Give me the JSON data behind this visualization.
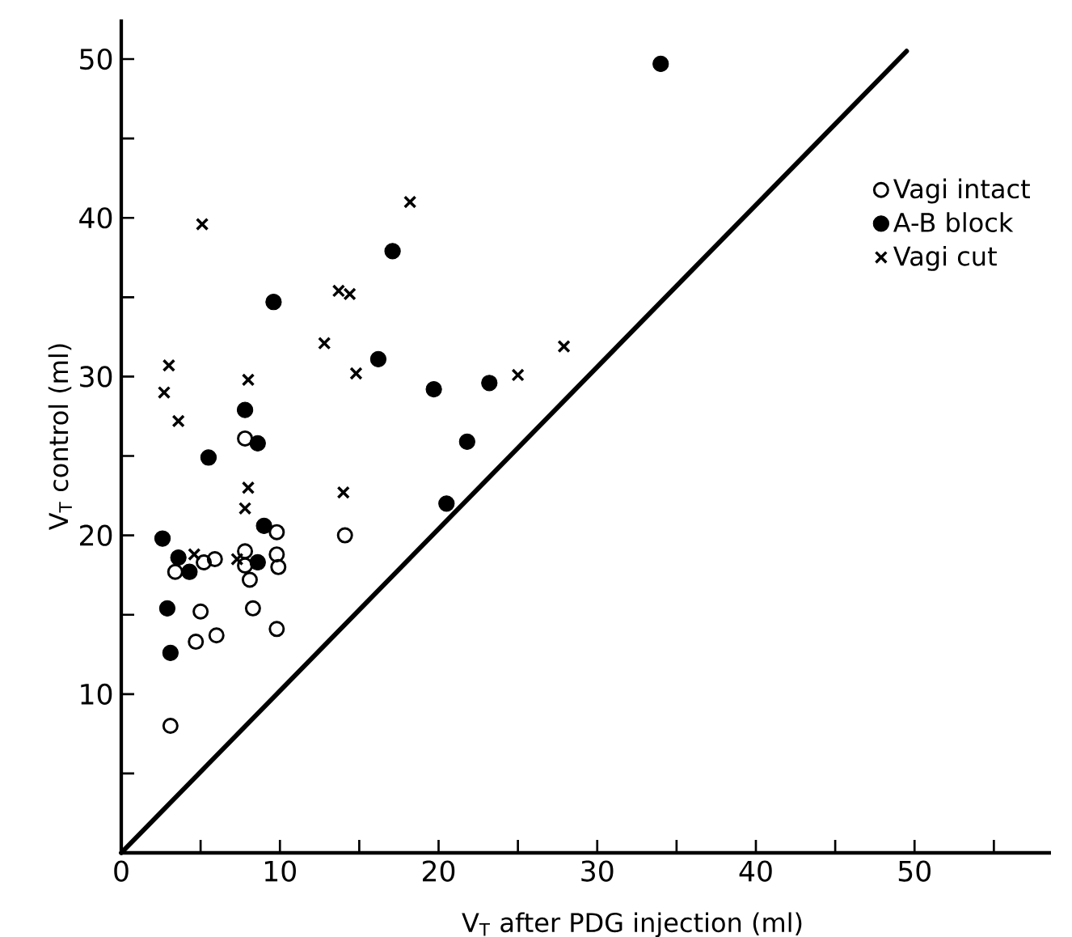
{
  "chart_data": {
    "type": "scatter",
    "xlabel": "V$_{T}$  after PDG injection  (ml)",
    "ylabel": "V$_{T}$ control  (ml)",
    "xlim": [
      0,
      58.6
    ],
    "ylim": [
      0,
      52.5
    ],
    "xticks": [
      0,
      {
        "value": 5,
        "label": null
      },
      10,
      {
        "value": 15,
        "label": null
      },
      20,
      {
        "value": 25,
        "label": null
      },
      30,
      {
        "value": 35,
        "label": null
      },
      40,
      {
        "value": 45,
        "label": null
      },
      50,
      {
        "value": 55,
        "label": null
      }
    ],
    "yticks": [
      {
        "value": 5,
        "label": null
      },
      10,
      {
        "value": 15,
        "label": null
      },
      20,
      {
        "value": 25,
        "label": null
      },
      30,
      {
        "value": 35,
        "label": null
      },
      40,
      {
        "value": 45,
        "label": null
      },
      50
    ],
    "legend": "top right",
    "grid": false,
    "series": [
      {
        "name": "Vagi intact",
        "color": "#000000",
        "marker": "circle-open",
        "x": [
          3.1,
          4.7,
          6.0,
          5.0,
          8.3,
          9.8,
          3.4,
          5.2,
          5.9,
          7.8,
          7.8,
          8.1,
          9.8,
          9.8,
          9.9,
          14.1,
          7.8
        ],
        "values": [
          8.0,
          13.3,
          13.7,
          15.2,
          15.4,
          14.1,
          17.7,
          18.3,
          18.5,
          19.0,
          18.1,
          17.2,
          20.2,
          18.8,
          18.0,
          20.0,
          26.1
        ]
      },
      {
        "name": "A-B block",
        "color": "#000000",
        "marker": "circle",
        "x": [
          2.6,
          3.6,
          4.3,
          2.9,
          3.1,
          5.5,
          7.8,
          8.6,
          9.0,
          8.6,
          9.6,
          16.2,
          17.1,
          19.7,
          23.2,
          21.8,
          20.5,
          34.0
        ],
        "values": [
          19.8,
          18.6,
          17.7,
          15.4,
          12.6,
          24.9,
          27.9,
          25.8,
          20.6,
          18.3,
          34.7,
          31.1,
          37.9,
          29.2,
          29.6,
          25.9,
          22.0,
          49.7
        ]
      },
      {
        "name": "Vagi cut",
        "color": "#000000",
        "marker": "cross",
        "x": [
          3.0,
          2.7,
          3.6,
          5.1,
          8.0,
          8.0,
          7.8,
          7.3,
          4.6,
          12.8,
          13.7,
          14.4,
          14.8,
          14.0,
          18.2,
          25.0,
          27.9
        ],
        "values": [
          30.7,
          29.0,
          27.2,
          39.6,
          29.8,
          23.0,
          21.7,
          18.5,
          18.8,
          32.1,
          35.4,
          35.2,
          30.2,
          22.7,
          41.0,
          30.1,
          31.9
        ]
      },
      {
        "type": "line",
        "color": "#000000",
        "marker": "none",
        "line_style": "solid",
        "x": [
          0,
          49.5
        ],
        "values": [
          0,
          50.5
        ]
      }
    ]
  }
}
